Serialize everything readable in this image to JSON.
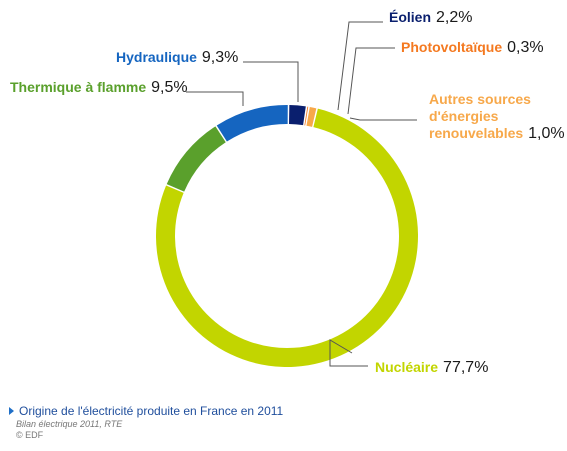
{
  "chart_data": {
    "type": "pie",
    "categories": [
      "Nucléaire",
      "Thermique à flamme",
      "Hydraulique",
      "Éolien",
      "Photovoltaïque",
      "Autres sources d'énergies renouvelables"
    ],
    "values": [
      77.7,
      9.5,
      9.3,
      2.2,
      0.3,
      1.0
    ],
    "series": [
      {
        "label": "Nucléaire",
        "value": 77.7,
        "value_text": "77,7%",
        "color": "#c2d500"
      },
      {
        "label": "Thermique à flamme",
        "value": 9.5,
        "value_text": "9,5%",
        "color": "#5aa02c"
      },
      {
        "label": "Hydraulique",
        "value": 9.3,
        "value_text": "9,3%",
        "color": "#1565c0"
      },
      {
        "label": "Éolien",
        "value": 2.2,
        "value_text": "2,2%",
        "color": "#0a1f6e"
      },
      {
        "label": "Photovoltaïque",
        "value": 0.3,
        "value_text": "0,3%",
        "color": "#f47920"
      },
      {
        "label_lines": [
          "Autres sources",
          "d'énergies",
          "renouvelables"
        ],
        "value": 1.0,
        "value_text": "1,0%",
        "color": "#f7a84a"
      }
    ],
    "style": "donut"
  },
  "caption": {
    "title": "Origine de l'électricité produite en France en 2011",
    "source": "Bilan électrique 2011, RTE",
    "credit": "© EDF"
  },
  "colors": {
    "caption_title": "#1f4e9c",
    "label_text": "#1a1a1a",
    "leader_line": "#555555"
  }
}
